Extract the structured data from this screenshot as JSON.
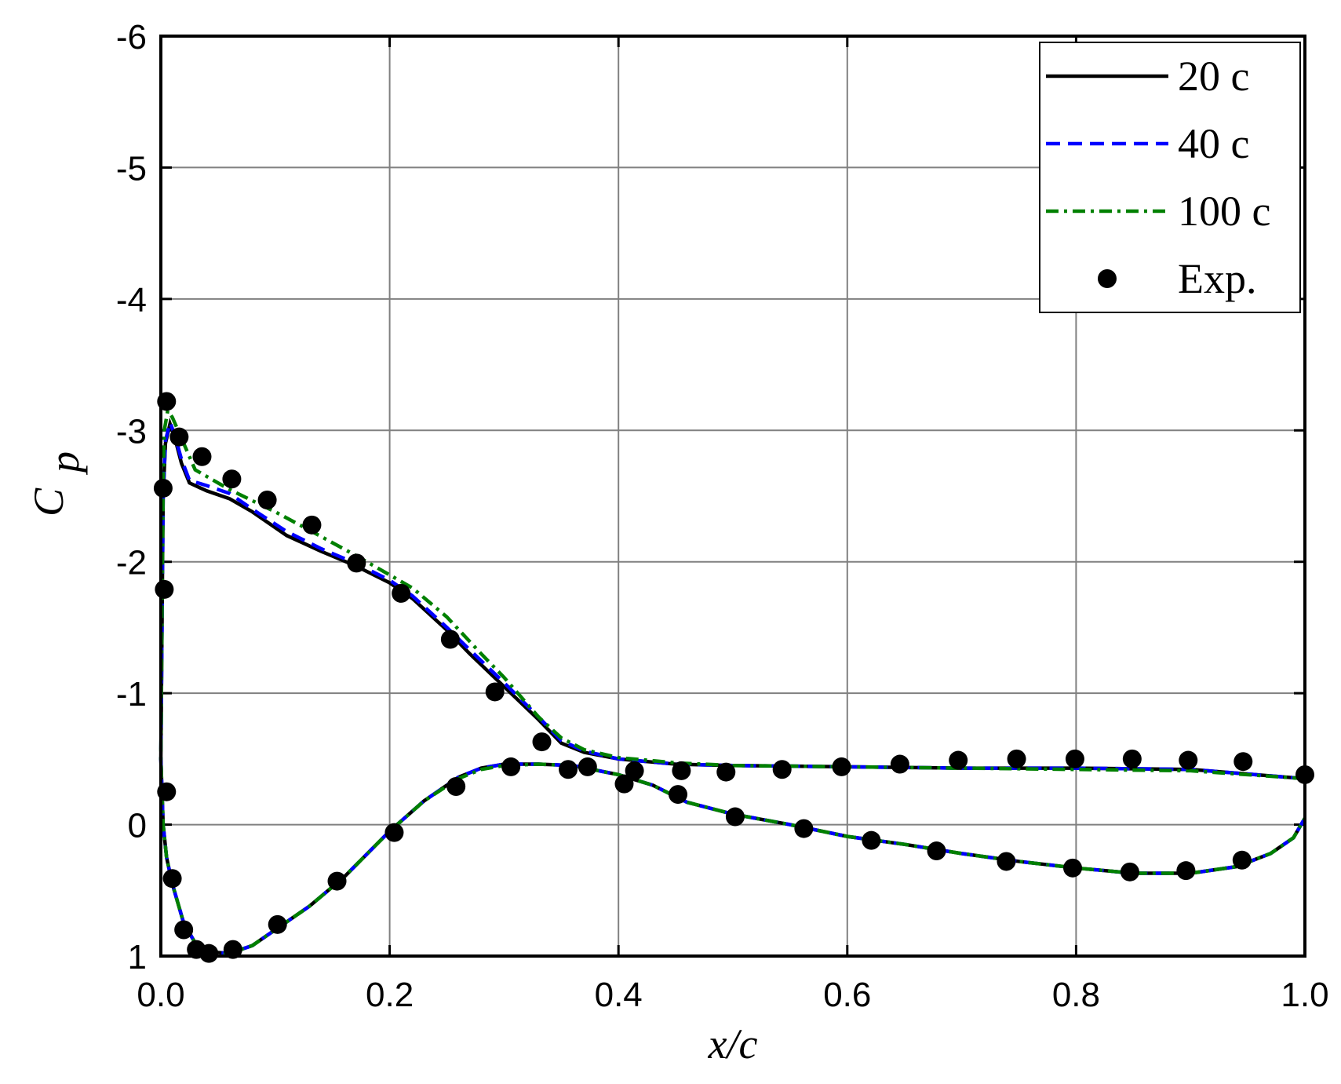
{
  "chart_data": {
    "type": "line",
    "x_label": "x/c",
    "y_label": {
      "symbol": "C",
      "subscript": "p"
    },
    "xlim": [
      0,
      1
    ],
    "xticks": [
      {
        "value": 0,
        "label": "0.0"
      },
      0.2,
      0.4,
      0.6,
      0.8,
      {
        "value": 1,
        "label": "1.0"
      }
    ],
    "ylim": [
      1,
      -6
    ],
    "yticks": [
      1,
      0,
      -1,
      -2,
      -3,
      -4,
      -5,
      -6
    ],
    "grid": true,
    "legend": "upper right",
    "series": [
      {
        "name": "20 c",
        "type": "line",
        "color": "#000000",
        "dash": "solid",
        "x": [
          1,
          0.9,
          0.8,
          0.7,
          0.6,
          0.5,
          0.45,
          0.4,
          0.37,
          0.35,
          0.33,
          0.3,
          0.27,
          0.25,
          0.22,
          0.2,
          0.17,
          0.14,
          0.11,
          0.08,
          0.06,
          0.04,
          0.025,
          0.018,
          0.012,
          0.008,
          0.004,
          0.002,
          0.001,
          0,
          0.002,
          0.005,
          0.01,
          0.02,
          0.03,
          0.045,
          0.06,
          0.08,
          0.1,
          0.13,
          0.16,
          0.2,
          0.23,
          0.26,
          0.28,
          0.3,
          0.33,
          0.36,
          0.4,
          0.43,
          0.46,
          0.5,
          0.55,
          0.6,
          0.65,
          0.7,
          0.75,
          0.8,
          0.85,
          0.9,
          0.94,
          0.97,
          0.99,
          1
        ],
        "values": [
          -0.35,
          -0.42,
          -0.43,
          -0.43,
          -0.44,
          -0.45,
          -0.46,
          -0.5,
          -0.55,
          -0.62,
          -0.8,
          -1.05,
          -1.3,
          -1.48,
          -1.72,
          -1.84,
          -1.97,
          -2.08,
          -2.2,
          -2.38,
          -2.48,
          -2.54,
          -2.6,
          -2.75,
          -2.95,
          -3.05,
          -2.9,
          -2.5,
          -1.5,
          -0.5,
          0,
          0.25,
          0.45,
          0.75,
          0.9,
          0.97,
          0.98,
          0.92,
          0.8,
          0.62,
          0.4,
          0.05,
          -0.18,
          -0.36,
          -0.43,
          -0.46,
          -0.46,
          -0.45,
          -0.38,
          -0.3,
          -0.17,
          -0.08,
          0,
          0.09,
          0.15,
          0.22,
          0.28,
          0.33,
          0.37,
          0.37,
          0.32,
          0.22,
          0.1,
          -0.05
        ]
      },
      {
        "name": "40 c",
        "type": "line",
        "color": "#0000ff",
        "dash": "dashed",
        "x": [
          1,
          0.9,
          0.8,
          0.7,
          0.6,
          0.5,
          0.45,
          0.4,
          0.37,
          0.35,
          0.33,
          0.3,
          0.27,
          0.25,
          0.22,
          0.2,
          0.17,
          0.14,
          0.11,
          0.08,
          0.06,
          0.04,
          0.025,
          0.018,
          0.012,
          0.008,
          0.004,
          0.002,
          0.001,
          0,
          0.002,
          0.005,
          0.01,
          0.02,
          0.03,
          0.045,
          0.06,
          0.08,
          0.1,
          0.13,
          0.16,
          0.2,
          0.23,
          0.26,
          0.28,
          0.3,
          0.33,
          0.36,
          0.4,
          0.43,
          0.46,
          0.5,
          0.55,
          0.6,
          0.65,
          0.7,
          0.75,
          0.8,
          0.85,
          0.9,
          0.94,
          0.97,
          0.99,
          1
        ],
        "values": [
          -0.35,
          -0.42,
          -0.43,
          -0.43,
          -0.44,
          -0.45,
          -0.46,
          -0.5,
          -0.56,
          -0.64,
          -0.82,
          -1.08,
          -1.33,
          -1.5,
          -1.74,
          -1.86,
          -1.99,
          -2.1,
          -2.23,
          -2.4,
          -2.52,
          -2.58,
          -2.62,
          -2.78,
          -2.97,
          -3.06,
          -2.92,
          -2.5,
          -1.5,
          -0.5,
          0,
          0.25,
          0.45,
          0.75,
          0.9,
          0.97,
          0.98,
          0.92,
          0.8,
          0.62,
          0.4,
          0.05,
          -0.18,
          -0.36,
          -0.43,
          -0.46,
          -0.46,
          -0.45,
          -0.38,
          -0.3,
          -0.17,
          -0.08,
          0,
          0.09,
          0.15,
          0.22,
          0.28,
          0.33,
          0.37,
          0.37,
          0.32,
          0.22,
          0.1,
          -0.05
        ]
      },
      {
        "name": "100 c",
        "type": "line",
        "color": "#008000",
        "dash": "dashdot",
        "x": [
          1,
          0.9,
          0.8,
          0.7,
          0.6,
          0.5,
          0.45,
          0.4,
          0.37,
          0.35,
          0.33,
          0.3,
          0.28,
          0.25,
          0.22,
          0.2,
          0.17,
          0.13,
          0.1,
          0.06,
          0.03,
          0.01,
          0.006,
          0.003,
          0.002,
          0.001,
          0,
          0.002,
          0.005,
          0.01,
          0.02,
          0.03,
          0.045,
          0.06,
          0.08,
          0.1,
          0.13,
          0.16,
          0.2,
          0.23,
          0.26,
          0.28,
          0.3,
          0.33,
          0.36,
          0.4,
          0.43,
          0.46,
          0.5,
          0.55,
          0.6,
          0.65,
          0.7,
          0.75,
          0.8,
          0.85,
          0.9,
          0.94,
          0.97,
          0.99,
          1
        ],
        "values": [
          -0.35,
          -0.41,
          -0.42,
          -0.43,
          -0.44,
          -0.45,
          -0.47,
          -0.51,
          -0.57,
          -0.66,
          -0.82,
          -1.12,
          -1.3,
          -1.58,
          -1.8,
          -1.9,
          -2.05,
          -2.24,
          -2.38,
          -2.55,
          -2.7,
          -3.1,
          -3.15,
          -3.0,
          -2.6,
          -1.6,
          -0.5,
          0,
          0.25,
          0.45,
          0.75,
          0.9,
          0.97,
          0.98,
          0.92,
          0.8,
          0.62,
          0.4,
          0.05,
          -0.18,
          -0.35,
          -0.42,
          -0.45,
          -0.46,
          -0.45,
          -0.38,
          -0.3,
          -0.17,
          -0.08,
          0,
          0.09,
          0.15,
          0.22,
          0.28,
          0.33,
          0.37,
          0.37,
          0.32,
          0.22,
          0.1,
          -0.05
        ]
      },
      {
        "name": "Exp.",
        "type": "scatter",
        "color": "#000000",
        "x": [
          0.005,
          0.002,
          0.003,
          0.005,
          0.01,
          0.016,
          0.036,
          0.02,
          0.031,
          0.042,
          0.062,
          0.063,
          0.093,
          0.102,
          0.132,
          0.154,
          0.171,
          0.204,
          0.21,
          0.253,
          0.258,
          0.292,
          0.306,
          0.333,
          0.356,
          0.373,
          0.405,
          0.414,
          0.452,
          0.455,
          0.494,
          0.502,
          0.543,
          0.562,
          0.595,
          0.621,
          0.646,
          0.678,
          0.697,
          0.739,
          0.748,
          0.797,
          0.799,
          0.847,
          0.849,
          0.896,
          0.898,
          0.945,
          0.946,
          1
        ],
        "values": [
          -3.22,
          -2.56,
          -1.79,
          -0.25,
          0.41,
          -2.95,
          -2.8,
          0.8,
          0.95,
          0.98,
          -2.63,
          0.95,
          -2.47,
          0.76,
          -2.28,
          0.43,
          -1.99,
          0.06,
          -1.76,
          -1.41,
          -0.29,
          -1.01,
          -0.44,
          -0.63,
          -0.42,
          -0.44,
          -0.31,
          -0.41,
          -0.23,
          -0.41,
          -0.4,
          -0.06,
          -0.42,
          0.03,
          -0.44,
          0.12,
          -0.46,
          0.2,
          -0.49,
          0.28,
          -0.5,
          0.33,
          -0.5,
          0.36,
          -0.5,
          0.35,
          -0.49,
          0.27,
          -0.48,
          -0.38
        ]
      }
    ]
  }
}
